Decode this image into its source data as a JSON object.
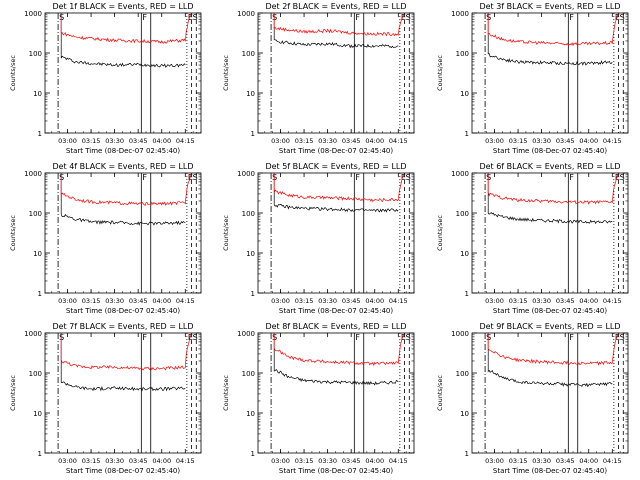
{
  "common": {
    "ylabel": "Counts/sec",
    "xlabel": "Start Time (08-Dec-07 02:45:40)",
    "x_ticks": [
      "03:00",
      "03:15",
      "03:30",
      "03:45",
      "04:00",
      "04:15"
    ],
    "y_ticks": [
      "1",
      "10",
      "100",
      "1000"
    ],
    "marker_labels": [
      "S",
      "F",
      "E",
      "S"
    ],
    "colors": {
      "events": "#000000",
      "lld": "#ff0000"
    }
  },
  "chart_data": [
    {
      "type": "line",
      "title": "Det 1f BLACK = Events, RED = LLD",
      "xlim": [
        "02:45:40",
        "04:25"
      ],
      "ylim": [
        1,
        1000
      ],
      "yscale": "log",
      "x": [
        "02:54",
        "02:56",
        "03:05",
        "03:15",
        "03:30",
        "03:45",
        "04:00",
        "04:15",
        "04:19"
      ],
      "series": [
        {
          "name": "Events",
          "values": [
            null,
            80,
            60,
            55,
            50,
            52,
            48,
            50,
            null
          ]
        },
        {
          "name": "LLD",
          "values": [
            null,
            320,
            250,
            230,
            210,
            200,
            190,
            210,
            1000
          ]
        }
      ]
    },
    {
      "type": "line",
      "title": "Det 2f BLACK = Events, RED = LLD",
      "xlim": [
        "02:45:40",
        "04:25"
      ],
      "ylim": [
        1,
        1000
      ],
      "yscale": "log",
      "x": [
        "02:54",
        "02:56",
        "03:05",
        "03:15",
        "03:30",
        "03:45",
        "04:00",
        "04:15",
        "04:19"
      ],
      "series": [
        {
          "name": "Events",
          "values": [
            null,
            200,
            180,
            160,
            170,
            150,
            150,
            150,
            null
          ]
        },
        {
          "name": "LLD",
          "values": [
            null,
            420,
            380,
            340,
            360,
            320,
            300,
            300,
            1000
          ]
        }
      ]
    },
    {
      "type": "line",
      "title": "Det 3f BLACK = Events, RED = LLD",
      "xlim": [
        "02:45:40",
        "04:25"
      ],
      "ylim": [
        1,
        1000
      ],
      "yscale": "log",
      "x": [
        "02:54",
        "02:56",
        "03:05",
        "03:15",
        "03:30",
        "03:45",
        "04:00",
        "04:15",
        "04:19"
      ],
      "series": [
        {
          "name": "Events",
          "values": [
            null,
            90,
            70,
            60,
            58,
            55,
            55,
            60,
            null
          ]
        },
        {
          "name": "LLD",
          "values": [
            null,
            300,
            220,
            190,
            180,
            170,
            170,
            180,
            1000
          ]
        }
      ]
    },
    {
      "type": "line",
      "title": "Det 4f BLACK = Events, RED = LLD",
      "xlim": [
        "02:45:40",
        "04:25"
      ],
      "ylim": [
        1,
        1000
      ],
      "yscale": "log",
      "x": [
        "02:54",
        "02:56",
        "03:05",
        "03:15",
        "03:30",
        "03:45",
        "04:00",
        "04:15",
        "04:19"
      ],
      "series": [
        {
          "name": "Events",
          "values": [
            null,
            90,
            70,
            60,
            58,
            55,
            55,
            58,
            null
          ]
        },
        {
          "name": "LLD",
          "values": [
            null,
            300,
            220,
            190,
            180,
            170,
            170,
            180,
            1000
          ]
        }
      ]
    },
    {
      "type": "line",
      "title": "Det 5f BLACK = Events, RED = LLD",
      "xlim": [
        "02:45:40",
        "04:25"
      ],
      "ylim": [
        1,
        1000
      ],
      "yscale": "log",
      "x": [
        "02:54",
        "02:56",
        "03:05",
        "03:15",
        "03:30",
        "03:45",
        "04:00",
        "04:15",
        "04:19"
      ],
      "series": [
        {
          "name": "Events",
          "values": [
            null,
            160,
            140,
            130,
            125,
            120,
            115,
            120,
            null
          ]
        },
        {
          "name": "LLD",
          "values": [
            null,
            350,
            280,
            250,
            240,
            230,
            210,
            220,
            1000
          ]
        }
      ]
    },
    {
      "type": "line",
      "title": "Det 6f BLACK = Events, RED = LLD",
      "xlim": [
        "02:45:40",
        "04:25"
      ],
      "ylim": [
        1,
        1000
      ],
      "yscale": "log",
      "x": [
        "02:54",
        "02:56",
        "03:05",
        "03:15",
        "03:30",
        "03:45",
        "04:00",
        "04:15",
        "04:19"
      ],
      "series": [
        {
          "name": "Events",
          "values": [
            null,
            100,
            80,
            70,
            65,
            62,
            60,
            60,
            null
          ]
        },
        {
          "name": "LLD",
          "values": [
            null,
            300,
            240,
            210,
            200,
            190,
            185,
            190,
            1000
          ]
        }
      ]
    },
    {
      "type": "line",
      "title": "Det 7f BLACK = Events, RED = LLD",
      "xlim": [
        "02:45:40",
        "04:25"
      ],
      "ylim": [
        1,
        1000
      ],
      "yscale": "log",
      "x": [
        "02:54",
        "02:56",
        "03:05",
        "03:15",
        "03:30",
        "03:45",
        "04:00",
        "04:15",
        "04:19"
      ],
      "series": [
        {
          "name": "Events",
          "values": [
            null,
            60,
            45,
            40,
            42,
            40,
            40,
            42,
            null
          ]
        },
        {
          "name": "LLD",
          "values": [
            null,
            200,
            150,
            140,
            140,
            130,
            130,
            140,
            1000
          ]
        }
      ]
    },
    {
      "type": "line",
      "title": "Det 8f BLACK = Events, RED = LLD",
      "xlim": [
        "02:45:40",
        "04:25"
      ],
      "ylim": [
        1,
        1000
      ],
      "yscale": "log",
      "x": [
        "02:54",
        "02:56",
        "03:05",
        "03:15",
        "03:30",
        "03:45",
        "04:00",
        "04:15",
        "04:19"
      ],
      "series": [
        {
          "name": "Events",
          "values": [
            null,
            120,
            80,
            65,
            60,
            58,
            55,
            60,
            null
          ]
        },
        {
          "name": "LLD",
          "values": [
            null,
            400,
            250,
            210,
            190,
            180,
            170,
            180,
            1000
          ]
        }
      ]
    },
    {
      "type": "line",
      "title": "Det 9f BLACK = Events, RED = LLD",
      "xlim": [
        "02:45:40",
        "04:25"
      ],
      "ylim": [
        1,
        1000
      ],
      "yscale": "log",
      "x": [
        "02:54",
        "02:56",
        "03:05",
        "03:15",
        "03:30",
        "03:45",
        "04:00",
        "04:15",
        "04:19"
      ],
      "series": [
        {
          "name": "Events",
          "values": [
            null,
            120,
            75,
            60,
            55,
            52,
            50,
            55,
            null
          ]
        },
        {
          "name": "LLD",
          "values": [
            null,
            400,
            260,
            210,
            190,
            180,
            175,
            180,
            1000
          ]
        }
      ]
    }
  ]
}
